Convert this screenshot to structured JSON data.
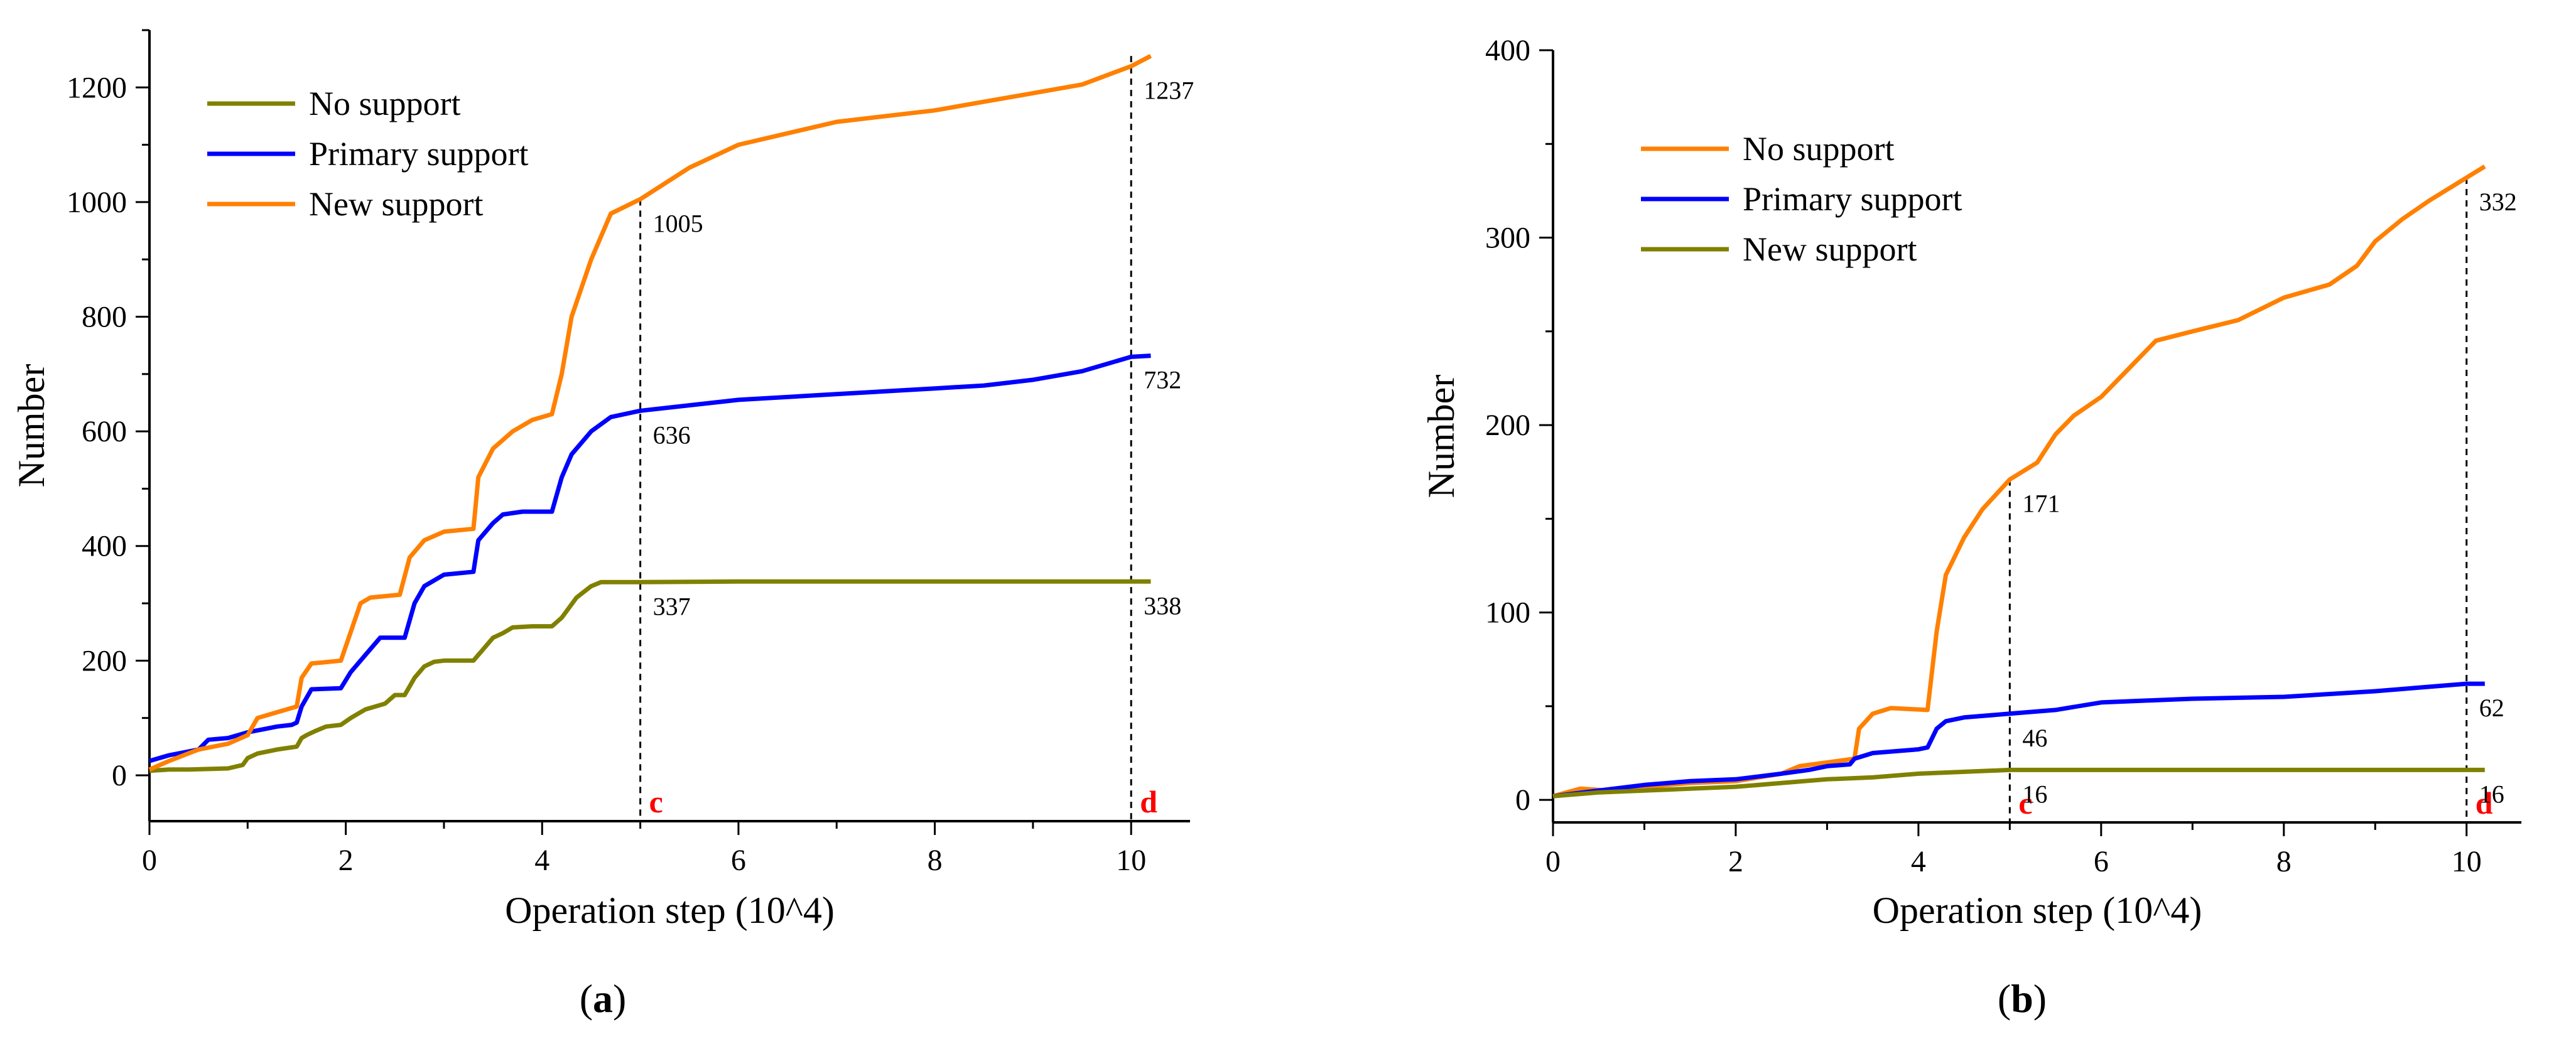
{
  "chart_data": [
    {
      "type": "line",
      "panel_label": "(a)",
      "panel_letter": "a",
      "xlabel": "Operation step (10^4)",
      "ylabel": "Number",
      "xlim": [
        0,
        10.6
      ],
      "ylim": [
        -80,
        1300
      ],
      "xticks": [
        0,
        2,
        4,
        6,
        8,
        10
      ],
      "yticks": [
        0,
        200,
        400,
        600,
        800,
        1000,
        1200
      ],
      "legend_position": "top-left",
      "series": [
        {
          "name": "No support",
          "color": "#808000",
          "points": [
            [
              0,
              8
            ],
            [
              0.2,
              10
            ],
            [
              0.4,
              10
            ],
            [
              0.8,
              12
            ],
            [
              0.95,
              18
            ],
            [
              1.0,
              30
            ],
            [
              1.1,
              38
            ],
            [
              1.3,
              45
            ],
            [
              1.5,
              50
            ],
            [
              1.55,
              65
            ],
            [
              1.6,
              70
            ],
            [
              1.7,
              78
            ],
            [
              1.8,
              85
            ],
            [
              1.95,
              88
            ],
            [
              2.05,
              100
            ],
            [
              2.2,
              115
            ],
            [
              2.4,
              125
            ],
            [
              2.5,
              140
            ],
            [
              2.6,
              140
            ],
            [
              2.7,
              170
            ],
            [
              2.8,
              190
            ],
            [
              2.9,
              198
            ],
            [
              3.0,
              200
            ],
            [
              3.3,
              200
            ],
            [
              3.4,
              220
            ],
            [
              3.5,
              240
            ],
            [
              3.6,
              248
            ],
            [
              3.7,
              258
            ],
            [
              3.9,
              260
            ],
            [
              4.1,
              260
            ],
            [
              4.2,
              275
            ],
            [
              4.35,
              310
            ],
            [
              4.5,
              330
            ],
            [
              4.6,
              337
            ],
            [
              5.0,
              337
            ],
            [
              6,
              338
            ],
            [
              8,
              338
            ],
            [
              10.2,
              338
            ]
          ]
        },
        {
          "name": "Primary support",
          "color": "#0000ff",
          "points": [
            [
              0,
              25
            ],
            [
              0.2,
              35
            ],
            [
              0.5,
              45
            ],
            [
              0.6,
              62
            ],
            [
              0.8,
              65
            ],
            [
              1.0,
              75
            ],
            [
              1.15,
              80
            ],
            [
              1.3,
              85
            ],
            [
              1.45,
              88
            ],
            [
              1.5,
              92
            ],
            [
              1.55,
              120
            ],
            [
              1.65,
              150
            ],
            [
              1.95,
              152
            ],
            [
              2.05,
              180
            ],
            [
              2.2,
              210
            ],
            [
              2.35,
              240
            ],
            [
              2.6,
              240
            ],
            [
              2.7,
              300
            ],
            [
              2.8,
              330
            ],
            [
              3.0,
              350
            ],
            [
              3.3,
              355
            ],
            [
              3.35,
              410
            ],
            [
              3.5,
              440
            ],
            [
              3.6,
              455
            ],
            [
              3.8,
              460
            ],
            [
              4.1,
              460
            ],
            [
              4.2,
              520
            ],
            [
              4.3,
              560
            ],
            [
              4.5,
              600
            ],
            [
              4.7,
              625
            ],
            [
              5.0,
              636
            ],
            [
              6,
              655
            ],
            [
              7,
              665
            ],
            [
              8,
              675
            ],
            [
              8.5,
              680
            ],
            [
              9,
              690
            ],
            [
              9.5,
              705
            ],
            [
              10,
              730
            ],
            [
              10.2,
              732
            ]
          ]
        },
        {
          "name": "New support",
          "color": "#ff8000",
          "points": [
            [
              0,
              10
            ],
            [
              0.2,
              25
            ],
            [
              0.5,
              45
            ],
            [
              0.8,
              55
            ],
            [
              1.0,
              70
            ],
            [
              1.1,
              100
            ],
            [
              1.3,
              110
            ],
            [
              1.5,
              120
            ],
            [
              1.55,
              170
            ],
            [
              1.65,
              195
            ],
            [
              1.95,
              200
            ],
            [
              2.05,
              250
            ],
            [
              2.15,
              300
            ],
            [
              2.25,
              310
            ],
            [
              2.55,
              315
            ],
            [
              2.65,
              380
            ],
            [
              2.8,
              410
            ],
            [
              3.0,
              425
            ],
            [
              3.3,
              430
            ],
            [
              3.35,
              520
            ],
            [
              3.5,
              570
            ],
            [
              3.7,
              600
            ],
            [
              3.9,
              620
            ],
            [
              4.1,
              630
            ],
            [
              4.2,
              700
            ],
            [
              4.3,
              800
            ],
            [
              4.5,
              900
            ],
            [
              4.7,
              980
            ],
            [
              5.0,
              1005
            ],
            [
              5.5,
              1060
            ],
            [
              6,
              1100
            ],
            [
              7,
              1140
            ],
            [
              8,
              1160
            ],
            [
              8.5,
              1175
            ],
            [
              9,
              1190
            ],
            [
              9.5,
              1205
            ],
            [
              10,
              1237
            ],
            [
              10.2,
              1255
            ]
          ]
        }
      ],
      "annotations": [
        {
          "x": 5,
          "y": 1005,
          "label": "1005"
        },
        {
          "x": 5,
          "y": 636,
          "label": "636"
        },
        {
          "x": 5,
          "y": 337,
          "label": "337"
        },
        {
          "x": 10,
          "y": 1237,
          "label": "1237"
        },
        {
          "x": 10,
          "y": 732,
          "label": "732"
        },
        {
          "x": 10,
          "y": 338,
          "label": "338"
        }
      ],
      "reference_lines": [
        {
          "x": 5,
          "top": 1005,
          "marker": "c"
        },
        {
          "x": 10,
          "top": 1255,
          "marker": "d"
        }
      ],
      "marker_color": "#ff0000"
    },
    {
      "type": "line",
      "panel_label": "(b)",
      "panel_letter": "b",
      "xlabel": "Operation step (10^4)",
      "ylabel": "Number",
      "xlim": [
        0,
        10.6
      ],
      "ylim": [
        -12,
        400
      ],
      "xticks": [
        0,
        2,
        4,
        6,
        8,
        10
      ],
      "yticks": [
        0,
        100,
        200,
        300,
        400
      ],
      "legend_position": "top-left",
      "series": [
        {
          "name": "No support",
          "color": "#ff8000",
          "points": [
            [
              0,
              2
            ],
            [
              0.3,
              6
            ],
            [
              0.6,
              5
            ],
            [
              1,
              7
            ],
            [
              1.5,
              9
            ],
            [
              2,
              10
            ],
            [
              2.5,
              14
            ],
            [
              2.7,
              18
            ],
            [
              3.0,
              20
            ],
            [
              3.3,
              22
            ],
            [
              3.35,
              38
            ],
            [
              3.5,
              46
            ],
            [
              3.7,
              49
            ],
            [
              4.1,
              48
            ],
            [
              4.2,
              90
            ],
            [
              4.3,
              120
            ],
            [
              4.5,
              140
            ],
            [
              4.7,
              155
            ],
            [
              5.0,
              171
            ],
            [
              5.3,
              180
            ],
            [
              5.5,
              195
            ],
            [
              5.7,
              205
            ],
            [
              6,
              215
            ],
            [
              6.3,
              230
            ],
            [
              6.6,
              245
            ],
            [
              7,
              250
            ],
            [
              7.5,
              256
            ],
            [
              8,
              268
            ],
            [
              8.5,
              275
            ],
            [
              8.8,
              285
            ],
            [
              9.0,
              298
            ],
            [
              9.3,
              310
            ],
            [
              9.6,
              320
            ],
            [
              10,
              332
            ],
            [
              10.2,
              338
            ]
          ]
        },
        {
          "name": "Primary support",
          "color": "#0000ff",
          "points": [
            [
              0,
              2
            ],
            [
              0.5,
              5
            ],
            [
              1,
              8
            ],
            [
              1.5,
              10
            ],
            [
              2,
              11
            ],
            [
              2.5,
              14
            ],
            [
              2.8,
              16
            ],
            [
              3.0,
              18
            ],
            [
              3.25,
              19
            ],
            [
              3.3,
              22
            ],
            [
              3.5,
              25
            ],
            [
              4.0,
              27
            ],
            [
              4.1,
              28
            ],
            [
              4.2,
              38
            ],
            [
              4.3,
              42
            ],
            [
              4.5,
              44
            ],
            [
              5.0,
              46
            ],
            [
              5.5,
              48
            ],
            [
              6,
              52
            ],
            [
              6.5,
              53
            ],
            [
              7,
              54
            ],
            [
              8,
              55
            ],
            [
              9,
              58
            ],
            [
              9.5,
              60
            ],
            [
              10,
              62
            ],
            [
              10.2,
              62
            ]
          ]
        },
        {
          "name": "New support",
          "color": "#808000",
          "points": [
            [
              0,
              2
            ],
            [
              0.5,
              4
            ],
            [
              1,
              5
            ],
            [
              1.5,
              6
            ],
            [
              2,
              7
            ],
            [
              2.5,
              9
            ],
            [
              3,
              11
            ],
            [
              3.5,
              12
            ],
            [
              4,
              14
            ],
            [
              4.5,
              15
            ],
            [
              5.0,
              16
            ],
            [
              6,
              16
            ],
            [
              8,
              16
            ],
            [
              10.2,
              16
            ]
          ]
        }
      ],
      "annotations": [
        {
          "x": 5,
          "y": 171,
          "label": "171"
        },
        {
          "x": 5,
          "y": 46,
          "label": "46"
        },
        {
          "x": 5,
          "y": 16,
          "label": "16"
        },
        {
          "x": 10,
          "y": 332,
          "label": "332"
        },
        {
          "x": 10,
          "y": 62,
          "label": "62"
        },
        {
          "x": 10,
          "y": 16,
          "label": "16"
        }
      ],
      "reference_lines": [
        {
          "x": 5,
          "top": 171,
          "marker": "c"
        },
        {
          "x": 10,
          "top": 332,
          "marker": "d"
        }
      ],
      "marker_color": "#ff0000"
    }
  ]
}
